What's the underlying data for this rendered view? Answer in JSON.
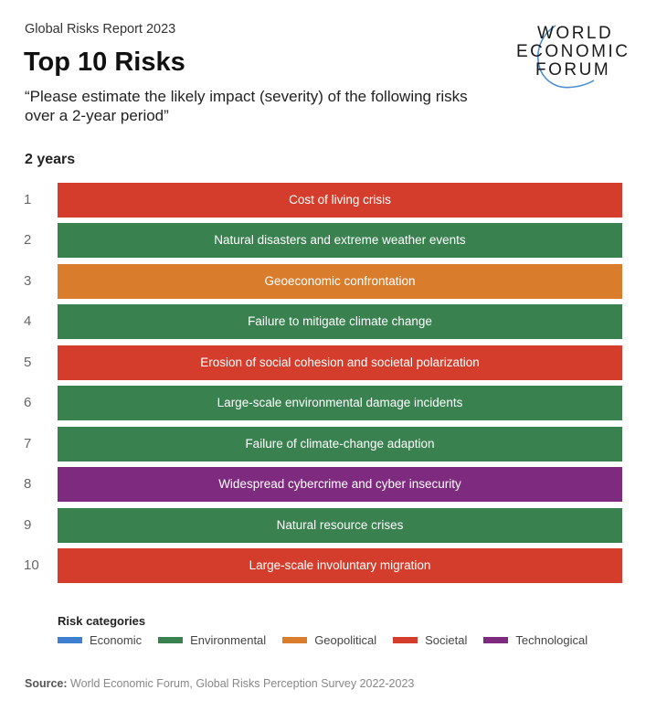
{
  "header": {
    "report": "Global Risks Report 2023",
    "title": "Top 10 Risks",
    "question": "“Please estimate the likely impact (severity) of the following risks over a 2-year period”",
    "period": "2 years",
    "logo_lines": [
      "WORLD",
      "ECONOMIC",
      "FORUM"
    ]
  },
  "colors": {
    "Economic": "#3f7fcf",
    "Environmental": "#3a8150",
    "Geopolitical": "#d97c2c",
    "Societal": "#d43d2c",
    "Technological": "#7e2a7f"
  },
  "chart_data": {
    "type": "table",
    "title": "Top 10 Risks",
    "columns": [
      "rank",
      "risk",
      "category"
    ],
    "rows": [
      {
        "rank": "1",
        "risk": "Cost of living crisis",
        "category": "Societal"
      },
      {
        "rank": "2",
        "risk": "Natural disasters and extreme weather events",
        "category": "Environmental"
      },
      {
        "rank": "3",
        "risk": "Geoeconomic confrontation",
        "category": "Geopolitical"
      },
      {
        "rank": "4",
        "risk": "Failure to mitigate climate change",
        "category": "Environmental"
      },
      {
        "rank": "5",
        "risk": "Erosion of social cohesion and societal polarization",
        "category": "Societal"
      },
      {
        "rank": "6",
        "risk": "Large-scale environmental damage incidents",
        "category": "Environmental"
      },
      {
        "rank": "7",
        "risk": "Failure of climate-change adaption",
        "category": "Environmental"
      },
      {
        "rank": "8",
        "risk": "Widespread cybercrime and cyber insecurity",
        "category": "Technological"
      },
      {
        "rank": "9",
        "risk": "Natural resource crises",
        "category": "Environmental"
      },
      {
        "rank": "10",
        "risk": "Large-scale involuntary migration",
        "category": "Societal"
      }
    ],
    "legend_title": "Risk categories",
    "legend": [
      "Economic",
      "Environmental",
      "Geopolitical",
      "Societal",
      "Technological"
    ]
  },
  "footer": {
    "source_label": "Source:",
    "source_text": " World Economic Forum, Global Risks Perception Survey 2022-2023"
  }
}
